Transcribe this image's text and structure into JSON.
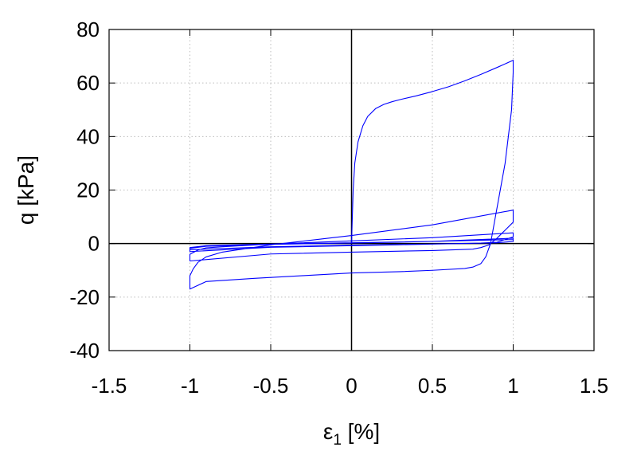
{
  "chart_data": {
    "type": "line",
    "xlabel": "ε",
    "xlabel_sub": "1",
    "xlabel_unit": " [%]",
    "ylabel": "q [kPa]",
    "xlim": [
      -1.5,
      1.5
    ],
    "ylim": [
      -40,
      80
    ],
    "xticks": [
      -1.5,
      -1,
      -0.5,
      0,
      0.5,
      1,
      1.5
    ],
    "xtick_labels": [
      "-1.5",
      "-1",
      "-0.5",
      "0",
      "0.5",
      "1",
      "1.5"
    ],
    "yticks": [
      -40,
      -20,
      0,
      20,
      40,
      60,
      80
    ],
    "ytick_labels": [
      "-40",
      "-20",
      "0",
      "20",
      "40",
      "60",
      "80"
    ],
    "grid": true,
    "zero_lines": true,
    "series": [
      {
        "color": "#0000ff",
        "x": [
          0,
          0.005,
          0.01,
          0.02,
          0.04,
          0.07,
          0.1,
          0.15,
          0.2,
          0.25,
          0.3,
          0.4,
          0.5,
          0.6,
          0.7,
          0.8,
          0.9,
          1.0,
          1.0,
          0.99,
          0.97,
          0.95,
          0.92,
          0.89,
          0.86,
          0.83,
          0.8,
          0.75,
          0.7,
          0.5,
          0.3,
          0.0,
          -0.3,
          -0.6,
          -0.9,
          -1.0,
          -1.0,
          -0.98,
          -0.95,
          -0.9,
          -0.8,
          -0.5,
          0.0,
          0.5,
          1.0,
          1.0,
          0.95,
          0.9,
          0.85,
          0.8,
          0.75,
          0.5,
          0.0,
          -0.5,
          -1.0,
          -1.0,
          -0.95,
          -0.9,
          -0.8,
          -0.5,
          0.0,
          0.5,
          1.0,
          1.0,
          0.9,
          0.8,
          0.5,
          0.0,
          -0.5,
          -1.0,
          -1.0,
          -0.9,
          -0.5,
          0.0,
          0.5,
          1.0,
          1.0,
          0.9,
          0.5,
          0.0,
          -0.5,
          -1.0,
          -1.0,
          -0.9,
          -0.5,
          0.0,
          0.5,
          1.0
        ],
        "y": [
          0,
          10,
          20,
          30,
          38,
          44,
          47.5,
          50.5,
          52,
          53,
          53.8,
          55.2,
          56.8,
          58.6,
          60.8,
          63.2,
          65.8,
          68.5,
          64,
          50,
          40,
          30,
          20,
          10,
          0,
          -5,
          -7.5,
          -8.8,
          -9.3,
          -10,
          -10.5,
          -11,
          -12,
          -13,
          -14.2,
          -17,
          -12,
          -9.5,
          -7,
          -5,
          -3.2,
          -0.5,
          3,
          7,
          12.5,
          8,
          5,
          2,
          -0.5,
          -1.5,
          -2.1,
          -2.6,
          -3.2,
          -3.9,
          -6.5,
          -4,
          -2.4,
          -1.6,
          -1.2,
          -0.2,
          1,
          2.2,
          4,
          2.5,
          0.5,
          0.2,
          -0.2,
          -0.8,
          -1.4,
          -3,
          -1.8,
          -1,
          -0.3,
          0.2,
          0.8,
          2,
          0.8,
          0.3,
          -0.2,
          -0.6,
          -1.2,
          -2.3,
          -1.5,
          -0.8,
          -0.2,
          0.3,
          0.8,
          1.5
        ]
      }
    ]
  }
}
